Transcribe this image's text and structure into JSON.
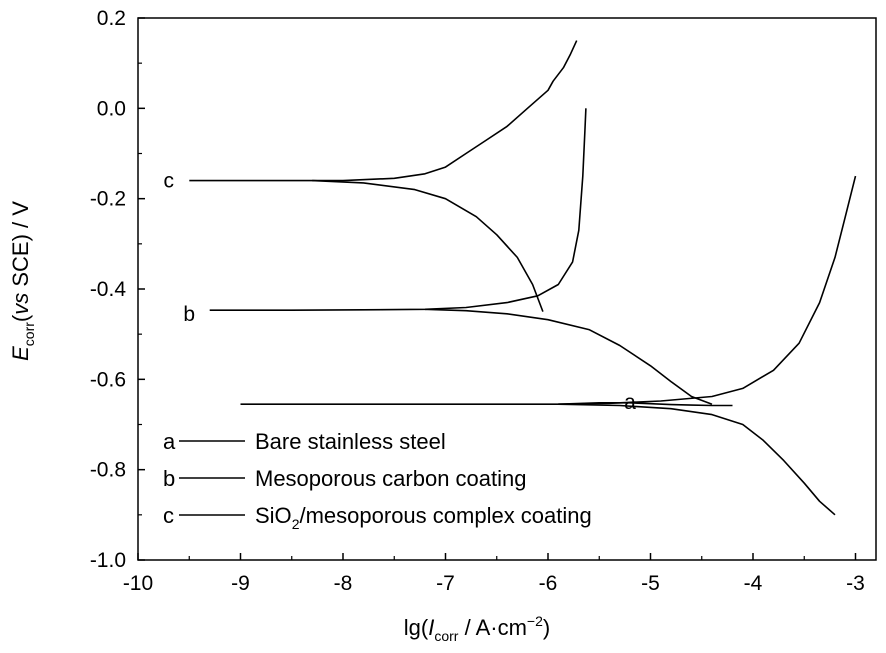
{
  "chart_data": {
    "type": "line",
    "xlim": [
      -10,
      -2.8
    ],
    "ylim": [
      -1.0,
      0.2
    ],
    "xticks": [
      -10,
      -9,
      -8,
      -7,
      -6,
      -5,
      -4,
      -3
    ],
    "yticks": [
      0.2,
      0.0,
      -0.2,
      -0.4,
      -0.6,
      -0.8,
      -1.0
    ],
    "xtick_labels": [
      "-10",
      "-9",
      "-8",
      "-7",
      "-6",
      "-5",
      "-4",
      "-3"
    ],
    "ytick_labels": [
      "0.2",
      "0.0",
      "-0.2",
      "-0.4",
      "-0.6",
      "-0.8",
      "-1.0"
    ],
    "xlabel": {
      "pre": "lg(",
      "italic": "I",
      "sub": "corr",
      "post": " / A·cm",
      "sup": "−2",
      "end": ")"
    },
    "ylabel": {
      "italic": "E",
      "sub": "corr",
      "mid": "(",
      "italic2": "vs",
      "post": " SCE) / V"
    },
    "grid": false,
    "series": [
      {
        "name": "Bare stainless steel",
        "label": "a",
        "color": "#000000",
        "branches": [
          [
            [
              -9.0,
              -0.655
            ],
            [
              -5.9,
              -0.655
            ],
            [
              -5.5,
              -0.652
            ],
            [
              -5.2,
              -0.652
            ],
            [
              -5.0,
              -0.654
            ],
            [
              -4.8,
              -0.656
            ],
            [
              -4.6,
              -0.657
            ],
            [
              -4.4,
              -0.658
            ],
            [
              -4.2,
              -0.658
            ]
          ],
          [
            [
              -5.9,
              -0.655
            ],
            [
              -5.4,
              -0.653
            ],
            [
              -4.9,
              -0.648
            ],
            [
              -4.4,
              -0.638
            ],
            [
              -4.1,
              -0.62
            ],
            [
              -3.8,
              -0.58
            ],
            [
              -3.55,
              -0.52
            ],
            [
              -3.35,
              -0.43
            ],
            [
              -3.2,
              -0.33
            ],
            [
              -3.1,
              -0.24
            ],
            [
              -3.0,
              -0.15
            ]
          ],
          [
            [
              -5.9,
              -0.655
            ],
            [
              -5.3,
              -0.658
            ],
            [
              -4.8,
              -0.665
            ],
            [
              -4.4,
              -0.678
            ],
            [
              -4.1,
              -0.7
            ],
            [
              -3.9,
              -0.735
            ],
            [
              -3.7,
              -0.78
            ],
            [
              -3.5,
              -0.83
            ],
            [
              -3.35,
              -0.87
            ],
            [
              -3.2,
              -0.9
            ]
          ]
        ]
      },
      {
        "name": "Mesoporous carbon coating",
        "label": "b",
        "color": "#000000",
        "branches": [
          [
            [
              -9.3,
              -0.447
            ],
            [
              -8.5,
              -0.447
            ],
            [
              -7.8,
              -0.446
            ],
            [
              -7.2,
              -0.445
            ],
            [
              -6.8,
              -0.441
            ],
            [
              -6.4,
              -0.43
            ],
            [
              -6.1,
              -0.415
            ],
            [
              -5.9,
              -0.39
            ],
            [
              -5.76,
              -0.34
            ],
            [
              -5.7,
              -0.27
            ],
            [
              -5.66,
              -0.15
            ],
            [
              -5.64,
              -0.05
            ],
            [
              -5.63,
              0.0
            ]
          ],
          [
            [
              -7.2,
              -0.445
            ],
            [
              -6.8,
              -0.448
            ],
            [
              -6.4,
              -0.455
            ],
            [
              -6.0,
              -0.468
            ],
            [
              -5.6,
              -0.49
            ],
            [
              -5.3,
              -0.525
            ],
            [
              -5.0,
              -0.57
            ],
            [
              -4.8,
              -0.605
            ],
            [
              -4.6,
              -0.638
            ],
            [
              -4.4,
              -0.655
            ]
          ]
        ]
      },
      {
        "name": "SiO2/mesoporous complex coating",
        "label": "c",
        "color": "#000000",
        "branches": [
          [
            [
              -9.5,
              -0.16
            ],
            [
              -8.0,
              -0.16
            ],
            [
              -7.5,
              -0.155
            ],
            [
              -7.2,
              -0.145
            ],
            [
              -7.0,
              -0.13
            ],
            [
              -6.8,
              -0.1
            ],
            [
              -6.6,
              -0.07
            ],
            [
              -6.4,
              -0.04
            ],
            [
              -6.2,
              0.0
            ],
            [
              -6.0,
              0.04
            ],
            [
              -5.95,
              0.06
            ],
            [
              -5.85,
              0.09
            ],
            [
              -5.78,
              0.12
            ],
            [
              -5.72,
              0.15
            ]
          ],
          [
            [
              -8.3,
              -0.16
            ],
            [
              -7.8,
              -0.165
            ],
            [
              -7.3,
              -0.18
            ],
            [
              -7.0,
              -0.2
            ],
            [
              -6.7,
              -0.24
            ],
            [
              -6.5,
              -0.28
            ],
            [
              -6.3,
              -0.33
            ],
            [
              -6.15,
              -0.39
            ],
            [
              -6.05,
              -0.45
            ]
          ]
        ]
      }
    ],
    "curve_labels": [
      {
        "text": "a",
        "x": -5.2,
        "y": -0.65
      },
      {
        "text": "b",
        "x": -9.5,
        "y": -0.455
      },
      {
        "text": "c",
        "x": -9.7,
        "y": -0.16
      }
    ],
    "legend": {
      "placement": "bottom-left",
      "entries": [
        {
          "key": "a",
          "text": "Bare stainless steel"
        },
        {
          "key": "b",
          "text": "Mesoporous carbon coating"
        },
        {
          "key": "c",
          "pre": "SiO",
          "sub": "2",
          "post": "/mesoporous complex coating"
        }
      ]
    }
  }
}
